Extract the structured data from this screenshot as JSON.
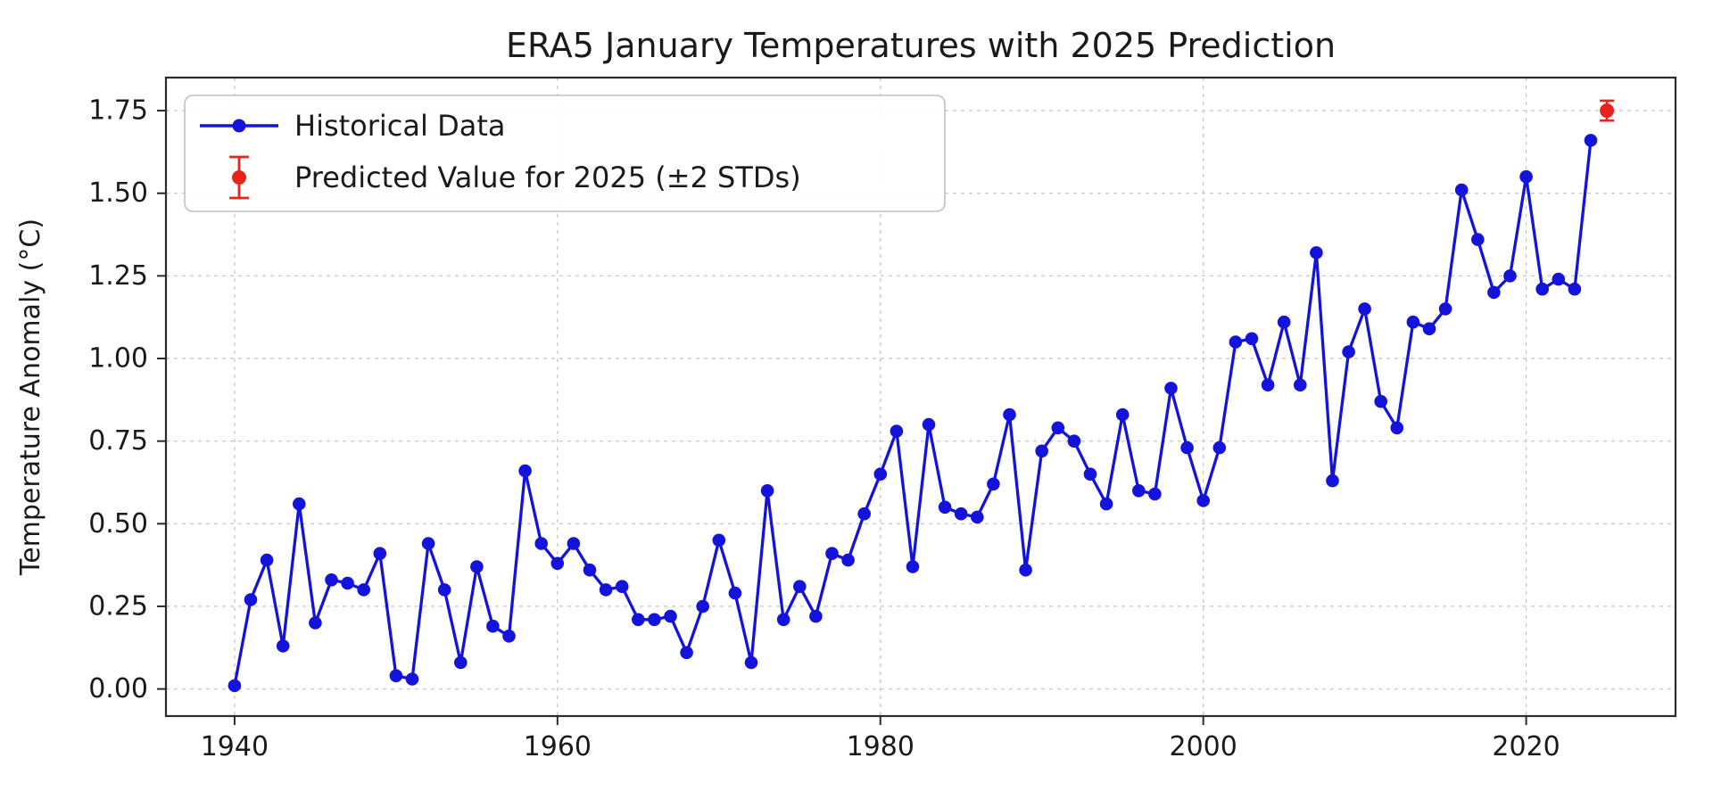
{
  "title": "ERA5 January Temperatures with 2025 Prediction",
  "colors": {
    "historical": "#1313dc",
    "prediction": "#e8231b"
  },
  "chart_data": {
    "type": "line",
    "title": "ERA5 January Temperatures with 2025 Prediction",
    "xlabel": "",
    "ylabel": "Temperature Anomaly (°C)",
    "grid": true,
    "legend": {
      "position": "upper-left",
      "entries": [
        "Historical Data",
        "Predicted Value for 2025 (±2 STDs)"
      ]
    },
    "xlim": [
      1935.75,
      2029.25
    ],
    "ylim": [
      -0.082,
      1.85
    ],
    "x_ticks": [
      1940,
      1960,
      1980,
      2000,
      2020
    ],
    "y_ticks": [
      0.0,
      0.25,
      0.5,
      0.75,
      1.0,
      1.25,
      1.5,
      1.75
    ],
    "y_tick_labels": [
      "0.00",
      "0.25",
      "0.50",
      "0.75",
      "1.00",
      "1.25",
      "1.50",
      "1.75"
    ],
    "series": [
      {
        "name": "Historical Data",
        "type": "line+marker",
        "color": "#1313dc",
        "x": [
          1940,
          1941,
          1942,
          1943,
          1944,
          1945,
          1946,
          1947,
          1948,
          1949,
          1950,
          1951,
          1952,
          1953,
          1954,
          1955,
          1956,
          1957,
          1958,
          1959,
          1960,
          1961,
          1962,
          1963,
          1964,
          1965,
          1966,
          1967,
          1968,
          1969,
          1970,
          1971,
          1972,
          1973,
          1974,
          1975,
          1976,
          1977,
          1978,
          1979,
          1980,
          1981,
          1982,
          1983,
          1984,
          1985,
          1986,
          1987,
          1988,
          1989,
          1990,
          1991,
          1992,
          1993,
          1994,
          1995,
          1996,
          1997,
          1998,
          1999,
          2000,
          2001,
          2002,
          2003,
          2004,
          2005,
          2006,
          2007,
          2008,
          2009,
          2010,
          2011,
          2012,
          2013,
          2014,
          2015,
          2016,
          2017,
          2018,
          2019,
          2020,
          2021,
          2022,
          2023,
          2024
        ],
        "y": [
          0.01,
          0.27,
          0.39,
          0.13,
          0.56,
          0.2,
          0.33,
          0.32,
          0.3,
          0.41,
          0.04,
          0.03,
          0.44,
          0.3,
          0.08,
          0.37,
          0.19,
          0.16,
          0.66,
          0.44,
          0.38,
          0.44,
          0.36,
          0.3,
          0.31,
          0.21,
          0.21,
          0.22,
          0.11,
          0.25,
          0.45,
          0.29,
          0.08,
          0.6,
          0.21,
          0.31,
          0.22,
          0.41,
          0.39,
          0.53,
          0.65,
          0.78,
          0.37,
          0.8,
          0.55,
          0.53,
          0.52,
          0.62,
          0.83,
          0.36,
          0.72,
          0.79,
          0.75,
          0.65,
          0.56,
          0.83,
          0.6,
          0.59,
          0.91,
          0.73,
          0.57,
          0.73,
          1.05,
          1.06,
          0.92,
          1.11,
          0.92,
          1.32,
          0.63,
          1.02,
          1.15,
          0.87,
          0.79,
          1.11,
          1.09,
          1.15,
          1.51,
          1.36,
          1.2,
          1.25,
          1.55,
          1.21,
          1.24,
          1.21,
          1.66
        ]
      },
      {
        "name": "Predicted Value for 2025 (±2 STDs)",
        "type": "errorbar",
        "color": "#e8231b",
        "x": [
          2025
        ],
        "y": [
          1.75
        ],
        "yerr": [
          0.03
        ]
      }
    ]
  }
}
